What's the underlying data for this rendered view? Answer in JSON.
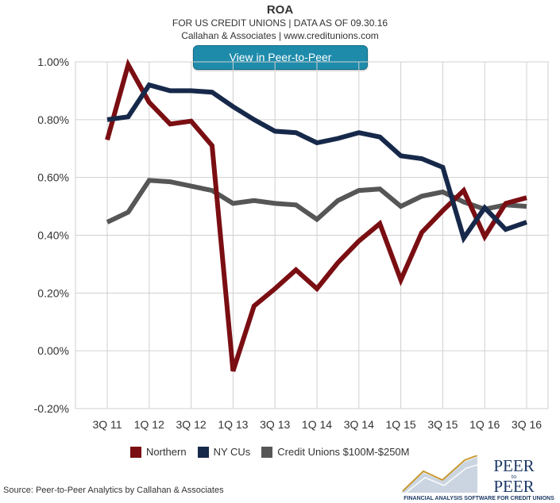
{
  "header": {
    "title": "ROA",
    "subtitle": "FOR US CREDIT UNIONS | DATA AS OF 09.30.16",
    "credit": "Callahan & Associates | www.creditunions.com",
    "button_label": "View in Peer-to-Peer"
  },
  "source": "Source: Peer-to-Peer Analytics by Callahan & Associates",
  "logo": {
    "line1": "PEER",
    "to": "to",
    "line2": "PEER",
    "tagline": "FINANCIAL ANALYSIS SOFTWARE FOR CREDIT UNIONS"
  },
  "chart_data": {
    "type": "line",
    "title": "ROA",
    "categories": [
      "3Q 11",
      "4Q 11",
      "1Q 12",
      "2Q 12",
      "3Q 12",
      "4Q 12",
      "1Q 13",
      "2Q 13",
      "3Q 13",
      "4Q 13",
      "1Q 14",
      "2Q 14",
      "3Q 14",
      "4Q 14",
      "1Q 15",
      "2Q 15",
      "3Q 15",
      "4Q 15",
      "1Q 16",
      "2Q 16",
      "3Q 16"
    ],
    "tick_labels": [
      "3Q 11",
      "1Q 12",
      "3Q 12",
      "1Q 13",
      "3Q 13",
      "1Q 14",
      "3Q 14",
      "1Q 15",
      "3Q 15",
      "1Q 16",
      "3Q 16"
    ],
    "ylim": [
      -0.2,
      1.0
    ],
    "yticks": [
      -0.2,
      0.0,
      0.2,
      0.4,
      0.6,
      0.8,
      1.0
    ],
    "ytick_labels": [
      "-0.20%",
      "0.00%",
      "0.20%",
      "0.40%",
      "0.60%",
      "0.80%",
      "1.00%"
    ],
    "grid": true,
    "legend_position": "bottom",
    "series": [
      {
        "name": "Northern",
        "color": "#7a0e12",
        "values": [
          0.73,
          0.99,
          0.86,
          0.785,
          0.795,
          0.71,
          -0.07,
          0.155,
          0.215,
          0.28,
          0.215,
          0.305,
          0.38,
          0.44,
          0.245,
          0.41,
          0.485,
          0.555,
          0.395,
          0.51,
          0.53
        ]
      },
      {
        "name": "NY CUs",
        "color": "#17294a",
        "values": [
          0.8,
          0.81,
          0.92,
          0.9,
          0.9,
          0.895,
          0.845,
          0.8,
          0.76,
          0.755,
          0.72,
          0.735,
          0.755,
          0.74,
          0.675,
          0.665,
          0.635,
          0.39,
          0.495,
          0.42,
          0.445
        ]
      },
      {
        "name": "Credit Unions $100M-$250M",
        "color": "#565656",
        "values": [
          0.445,
          0.48,
          0.59,
          0.585,
          0.57,
          0.555,
          0.51,
          0.52,
          0.51,
          0.505,
          0.455,
          0.52,
          0.555,
          0.56,
          0.5,
          0.535,
          0.55,
          0.515,
          0.49,
          0.505,
          0.5
        ]
      }
    ]
  }
}
